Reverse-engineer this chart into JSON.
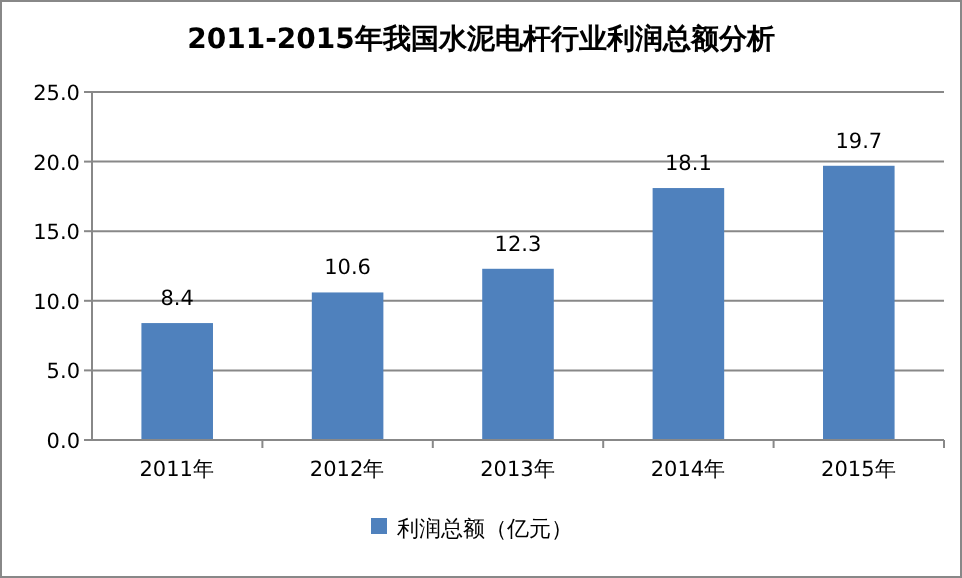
{
  "chart_data": {
    "type": "bar",
    "title": "2011-2015年我国水泥电杆行业利润总额分析",
    "categories": [
      "2011年",
      "2012年",
      "2013年",
      "2014年",
      "2015年"
    ],
    "series": [
      {
        "name": "利润总额（亿元）",
        "color": "#4f81bd",
        "values": [
          8.4,
          10.6,
          12.3,
          18.1,
          19.7
        ]
      }
    ],
    "ylim": [
      0,
      25
    ],
    "yticks": [
      {
        "value": 0,
        "label": "0.0"
      },
      {
        "value": 5,
        "label": "5.0"
      },
      {
        "value": 10,
        "label": "10.0"
      },
      {
        "value": 15,
        "label": "15.0"
      },
      {
        "value": 20,
        "label": "20.0"
      },
      {
        "value": 25,
        "label": "25.0"
      }
    ],
    "grid": "y",
    "data_labels": true,
    "legend": "bottom"
  }
}
